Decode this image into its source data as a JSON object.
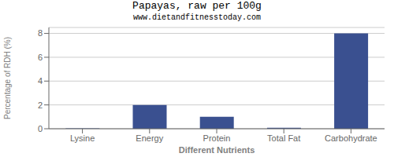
{
  "chart_data": {
    "type": "bar",
    "title": "Papayas, raw per 100g",
    "subtitle": "www.dietandfitnesstoday.com",
    "xlabel": "Different Nutrients",
    "ylabel": "Percentage of RDH (%)",
    "categories": [
      "Lysine",
      "Energy",
      "Protein",
      "Total Fat",
      "Carbohydrate"
    ],
    "values": [
      0.03,
      2.0,
      1.0,
      0.08,
      8.0
    ],
    "color": "#3A5090",
    "ylim": [
      0,
      8.5
    ],
    "yticks": [
      0,
      2,
      4,
      6,
      8
    ],
    "grid": true
  }
}
